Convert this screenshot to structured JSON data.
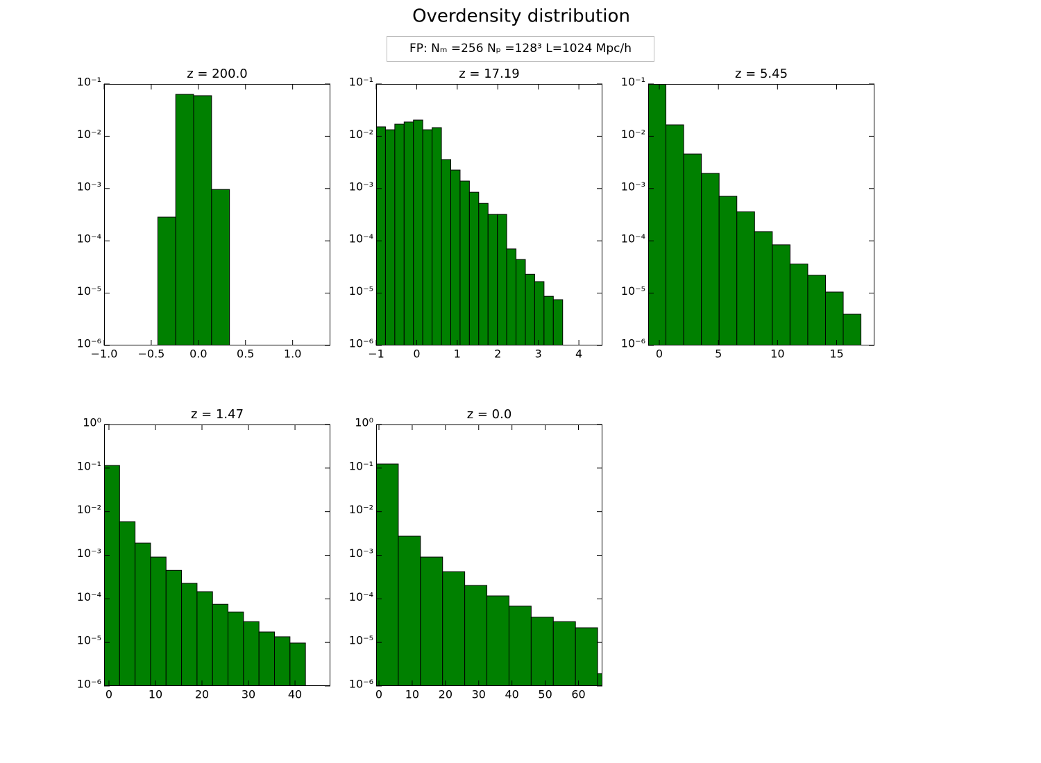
{
  "figure": {
    "title": "Overdensity distribution",
    "annotation": "FP: Nₘ =256 Nₚ =128³ L=1024 Mpc/h"
  },
  "chart_data": [
    {
      "type": "histogram",
      "title": "z = 200.0",
      "color": "#008000",
      "yscale": "log",
      "bins": [
        -0.43,
        -0.24,
        -0.05,
        0.14,
        0.33
      ],
      "values": [
        0.000284,
        0.0632,
        0.0596,
        0.00096
      ],
      "xlim": [
        -1.0,
        1.4
      ],
      "ylim": [
        1e-06,
        0.1
      ],
      "xticks": [
        {
          "value": -1,
          "label": "−1.0"
        },
        {
          "value": -0.5,
          "label": "−0.5"
        },
        {
          "value": 0,
          "label": "0.0"
        },
        0.5,
        {
          "value": 1,
          "label": "1.0"
        }
      ],
      "yticks": [
        {
          "value": 1e-06,
          "label": "10⁻⁶"
        },
        {
          "value": 1e-05,
          "label": "10⁻⁵"
        },
        {
          "value": 0.0001,
          "label": "10⁻⁴"
        },
        {
          "value": 0.001,
          "label": "10⁻³"
        },
        {
          "value": 0.01,
          "label": "10⁻²"
        },
        {
          "value": 0.1,
          "label": "10⁻¹"
        }
      ]
    },
    {
      "type": "histogram",
      "title": "z = 17.19",
      "color": "#008000",
      "yscale": "log",
      "bins": [
        -1.0,
        -0.77,
        -0.54,
        -0.31,
        -0.08,
        0.15,
        0.38,
        0.61,
        0.84,
        1.07,
        1.3,
        1.53,
        1.76,
        1.99,
        2.22,
        2.45,
        2.68,
        2.91,
        3.14,
        3.37,
        3.6
      ],
      "values": [
        0.0151,
        0.0133,
        0.017,
        0.0187,
        0.0204,
        0.0133,
        0.0146,
        0.00358,
        0.00226,
        0.00139,
        0.00085,
        0.00052,
        0.00032,
        0.00032,
        7e-05,
        4.4e-05,
        2.3e-05,
        1.66e-05,
        8.7e-06,
        7.5e-06
      ],
      "xlim": [
        -1,
        4.58
      ],
      "ylim": [
        1e-06,
        0.1
      ],
      "xticks": [
        {
          "value": -1,
          "label": "−1"
        },
        0,
        1,
        2,
        3,
        4
      ],
      "yticks": [
        {
          "value": 1e-06,
          "label": "10⁻⁶"
        },
        {
          "value": 1e-05,
          "label": "10⁻⁵"
        },
        {
          "value": 0.0001,
          "label": "10⁻⁴"
        },
        {
          "value": 0.001,
          "label": "10⁻³"
        },
        {
          "value": 0.01,
          "label": "10⁻²"
        },
        {
          "value": 0.1,
          "label": "10⁻¹"
        }
      ]
    },
    {
      "type": "histogram",
      "title": "z = 5.45",
      "color": "#008000",
      "yscale": "log",
      "bins": [
        -0.94,
        0.56,
        2.06,
        3.56,
        5.06,
        6.56,
        8.06,
        9.56,
        11.06,
        12.56,
        14.06,
        15.56,
        17.06
      ],
      "values": [
        0.1,
        0.0165,
        0.00457,
        0.00195,
        0.00071,
        0.00036,
        0.00015,
        8.4e-05,
        3.6e-05,
        2.2e-05,
        1.05e-05,
        3.95e-06
      ],
      "xlim": [
        -0.94,
        18.2
      ],
      "ylim": [
        1e-06,
        0.1
      ],
      "xticks": [
        0,
        5,
        10,
        15
      ],
      "yticks": [
        {
          "value": 1e-06,
          "label": "10⁻⁶"
        },
        {
          "value": 1e-05,
          "label": "10⁻⁵"
        },
        {
          "value": 0.0001,
          "label": "10⁻⁴"
        },
        {
          "value": 0.001,
          "label": "10⁻³"
        },
        {
          "value": 0.01,
          "label": "10⁻²"
        },
        {
          "value": 0.1,
          "label": "10⁻¹"
        }
      ]
    },
    {
      "type": "histogram",
      "title": "z = 1.47",
      "color": "#008000",
      "yscale": "log",
      "bins": [
        -1.04,
        2.29,
        5.62,
        8.95,
        12.28,
        15.61,
        18.94,
        22.27,
        25.6,
        28.93,
        32.26,
        35.59,
        38.92,
        42.25
      ],
      "values": [
        0.115,
        0.0059,
        0.0019,
        0.00091,
        0.00045,
        0.000227,
        0.000146,
        7.5e-05,
        5e-05,
        3e-05,
        1.74e-05,
        1.35e-05,
        9.7e-06
      ],
      "xlim": [
        -1.04,
        47.6
      ],
      "ylim": [
        1e-06,
        1
      ],
      "xticks": [
        0,
        10,
        20,
        30,
        40
      ],
      "yticks": [
        {
          "value": 1e-06,
          "label": "10⁻⁶"
        },
        {
          "value": 1e-05,
          "label": "10⁻⁵"
        },
        {
          "value": 0.0001,
          "label": "10⁻⁴"
        },
        {
          "value": 0.001,
          "label": "10⁻³"
        },
        {
          "value": 0.01,
          "label": "10⁻²"
        },
        {
          "value": 0.1,
          "label": "10⁻¹"
        },
        {
          "value": 1,
          "label": "10⁰"
        }
      ]
    },
    {
      "type": "histogram",
      "title": "z = 0.0",
      "color": "#008000",
      "yscale": "log",
      "bins": [
        -0.84,
        5.82,
        12.48,
        19.14,
        25.8,
        32.46,
        39.12,
        45.78,
        52.44,
        59.1,
        65.76,
        72.42
      ],
      "values": [
        0.124,
        0.00274,
        0.00091,
        0.00042,
        0.000203,
        0.000117,
        6.8e-05,
        3.8e-05,
        3e-05,
        2.17e-05,
        1.93e-06
      ],
      "xlim": [
        -0.84,
        67.2
      ],
      "ylim": [
        1e-06,
        1
      ],
      "xticks": [
        0,
        10,
        20,
        30,
        40,
        50,
        60
      ],
      "yticks": [
        {
          "value": 1e-06,
          "label": "10⁻⁶"
        },
        {
          "value": 1e-05,
          "label": "10⁻⁵"
        },
        {
          "value": 0.0001,
          "label": "10⁻⁴"
        },
        {
          "value": 0.001,
          "label": "10⁻³"
        },
        {
          "value": 0.01,
          "label": "10⁻²"
        },
        {
          "value": 0.1,
          "label": "10⁻¹"
        },
        {
          "value": 1,
          "label": "10⁰"
        }
      ]
    }
  ]
}
